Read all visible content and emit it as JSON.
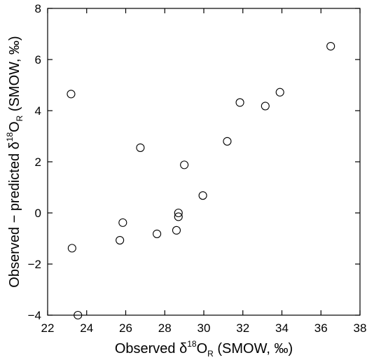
{
  "chart_data": {
    "type": "scatter",
    "title": "",
    "xlabel": {
      "prefix": "Observed δ",
      "sup": "18",
      "main": "O",
      "sub": "R",
      "suffix": " (SMOW, ‰)"
    },
    "ylabel": {
      "prefix": "Observed − predicted δ",
      "sup": "18",
      "main": "O",
      "sub": "R",
      "suffix": " (SMOW, ‰)"
    },
    "xlim": [
      22,
      38
    ],
    "ylim": [
      -4,
      8
    ],
    "xticks": [
      22,
      24,
      26,
      28,
      30,
      32,
      34,
      36,
      38
    ],
    "yticks": [
      -4,
      -2,
      0,
      2,
      4,
      6,
      8
    ],
    "grid": false,
    "legend": "none",
    "marker": "open-circle",
    "points": [
      {
        "x": 23.2,
        "y": 4.65
      },
      {
        "x": 23.25,
        "y": -1.38
      },
      {
        "x": 23.55,
        "y": -4.0
      },
      {
        "x": 25.7,
        "y": -1.07
      },
      {
        "x": 25.85,
        "y": -0.38
      },
      {
        "x": 26.75,
        "y": 2.55
      },
      {
        "x": 27.6,
        "y": -0.82
      },
      {
        "x": 28.6,
        "y": -0.68
      },
      {
        "x": 28.7,
        "y": 0.0
      },
      {
        "x": 28.7,
        "y": -0.15
      },
      {
        "x": 29.0,
        "y": 1.88
      },
      {
        "x": 29.95,
        "y": 0.68
      },
      {
        "x": 31.2,
        "y": 2.8
      },
      {
        "x": 31.85,
        "y": 4.32
      },
      {
        "x": 33.15,
        "y": 4.18
      },
      {
        "x": 33.9,
        "y": 4.72
      },
      {
        "x": 36.5,
        "y": 6.52
      }
    ]
  }
}
